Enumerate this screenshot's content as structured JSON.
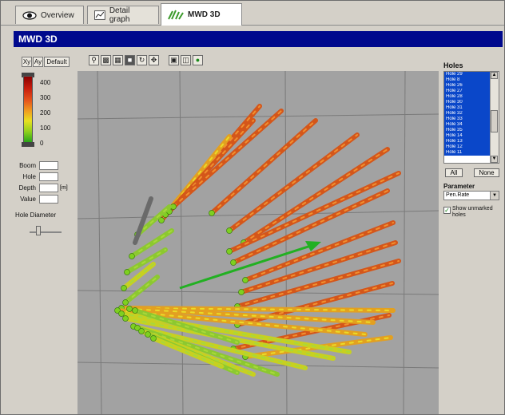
{
  "tabs": [
    {
      "label": "Overview",
      "icon": "eye-icon"
    },
    {
      "label": "Detail graph",
      "icon": "graph-icon"
    },
    {
      "label": "MWD 3D",
      "icon": "drill-icon"
    }
  ],
  "panel_title": "MWD 3D",
  "left_panel": {
    "view_buttons": [
      "Xy",
      "Ay",
      "Default"
    ],
    "legend_ticks": [
      "400",
      "300",
      "200",
      "100",
      "0"
    ],
    "fields": [
      {
        "label": "Boom",
        "value": ""
      },
      {
        "label": "Hole",
        "value": ""
      },
      {
        "label": "Depth",
        "value": "",
        "unit": "[m]"
      },
      {
        "label": "Value",
        "value": ""
      }
    ],
    "hole_diameter_label": "Hole Diameter"
  },
  "toolbar_icons": [
    "zoom-icon",
    "print-icon",
    "grid-icon",
    "shade-icon",
    "rotate-icon",
    "move-icon",
    "view-icon",
    "view-side-icon",
    "reset-icon"
  ],
  "right_panel": {
    "holes_title": "Holes",
    "holes": [
      "Hole 29",
      "Hole 8",
      "Hole 26",
      "Hole 27",
      "Hole 28",
      "Hole 30",
      "Hole 31",
      "Hole 32",
      "Hole 33",
      "Hole 34",
      "Hole 35",
      "Hole 14",
      "Hole 13",
      "Hole 12",
      "Hole 11"
    ],
    "all_button": "All",
    "none_button": "None",
    "parameter_title": "Parameter",
    "parameter_selected": "Pen.Rate",
    "show_unmarked_label": "Show unmarked holes",
    "show_unmarked_checked": true
  },
  "colors": {
    "title_bar": "#00098d",
    "selection": "#0a47c9",
    "canvas_bg": "#a2a2a2",
    "arrow": "#22b022"
  }
}
